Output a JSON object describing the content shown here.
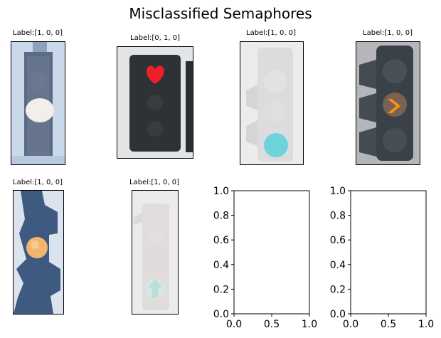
{
  "figure": {
    "title": "Misclassified Semaphores"
  },
  "panels": [
    {
      "label": "Label:[1, 0, 0]",
      "light": "white",
      "shape": "round"
    },
    {
      "label": "Label:[0, 1, 0]",
      "light": "red",
      "shape": "heart"
    },
    {
      "label": "Label:[1, 0, 0]",
      "light": "cyan",
      "shape": "round"
    },
    {
      "label": "Label:[1, 0, 0]",
      "light": "orange",
      "shape": "arrow-right"
    },
    {
      "label": "Label:[1, 0, 0]",
      "light": "amber",
      "shape": "round"
    },
    {
      "label": "Label:[1, 0, 0]",
      "light": "pale-green",
      "shape": "arrow-up"
    }
  ],
  "chart_data": [
    {
      "type": "scatter",
      "title": "",
      "x": [],
      "y": [],
      "xlim": [
        0.0,
        1.0
      ],
      "ylim": [
        0.0,
        1.0
      ],
      "xticks": [
        "0.0",
        "0.5",
        "1.0"
      ],
      "yticks": [
        "0.0",
        "0.2",
        "0.4",
        "0.6",
        "0.8",
        "1.0"
      ],
      "grid": false
    },
    {
      "type": "scatter",
      "title": "",
      "x": [],
      "y": [],
      "xlim": [
        0.0,
        1.0
      ],
      "ylim": [
        0.0,
        1.0
      ],
      "xticks": [
        "0.0",
        "0.5",
        "1.0"
      ],
      "yticks": [
        "0.0",
        "0.2",
        "0.4",
        "0.6",
        "0.8",
        "1.0"
      ],
      "grid": false
    }
  ]
}
